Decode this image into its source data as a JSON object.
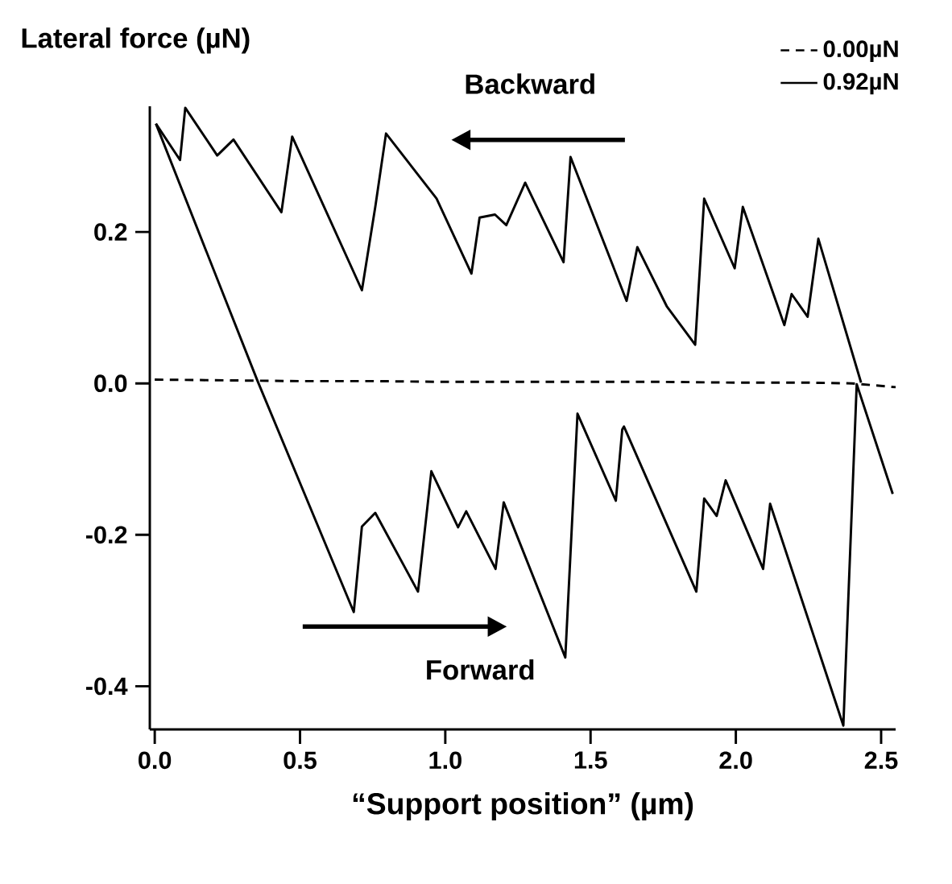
{
  "chart_data": {
    "type": "line",
    "ylabel": "Lateral force (µN)",
    "xlabel": "“Support position” (µm)",
    "annotations": [
      "Backward",
      "Forward"
    ],
    "xlim": [
      -0.017,
      2.55
    ],
    "ylim": [
      -0.457,
      0.366
    ],
    "xticks": [
      {
        "value": 0,
        "label": "0.0"
      },
      {
        "value": 0.5,
        "label": "0.5"
      },
      {
        "value": 1,
        "label": "1.0"
      },
      {
        "value": 1.5,
        "label": "1.5"
      },
      {
        "value": 2,
        "label": "2.0"
      },
      {
        "value": 2.5,
        "label": "2.5"
      }
    ],
    "yticks": [
      {
        "value": -0.4,
        "label": "-0.4"
      },
      {
        "value": -0.2,
        "label": "-0.2"
      },
      {
        "value": 0,
        "label": "0.0"
      },
      {
        "value": 0.2,
        "label": "0.2"
      }
    ],
    "legend": "top right",
    "series": [
      {
        "name": "0.00µN",
        "color": "#000000",
        "line_style": "dashed",
        "x": [
          0.0,
          0.25,
          0.5,
          0.75,
          1.0,
          1.25,
          1.5,
          1.75,
          2.0,
          2.25,
          2.4,
          2.55
        ],
        "values": [
          0.005,
          0.004,
          0.003,
          0.003,
          0.002,
          0.002,
          0.002,
          0.002,
          0.001,
          0.001,
          0.0,
          -0.005
        ]
      },
      {
        "name": "0.92µN",
        "color": "#000000",
        "line_style": "solid",
        "x": [
          0.004,
          0.354,
          0.685,
          0.713,
          0.759,
          0.906,
          0.952,
          1.044,
          1.072,
          1.173,
          1.201,
          1.413,
          1.455,
          1.587,
          1.609,
          1.615,
          1.864,
          1.891,
          1.934,
          1.965,
          2.094,
          2.118,
          2.37,
          2.416,
          2.54
        ],
        "values": [
          0.343,
          0.003,
          -0.302,
          -0.189,
          -0.171,
          -0.275,
          -0.116,
          -0.19,
          -0.169,
          -0.245,
          -0.157,
          -0.362,
          -0.04,
          -0.155,
          -0.061,
          -0.057,
          -0.275,
          -0.152,
          -0.175,
          -0.128,
          -0.245,
          -0.159,
          -0.452,
          -0.001,
          -0.146
        ]
      },
      {
        "color": "#000000",
        "line_style": "solid",
        "x": [
          0.004,
          0.087,
          0.105,
          0.215,
          0.271,
          0.436,
          0.473,
          0.713,
          0.759,
          0.796,
          0.97,
          1.09,
          1.118,
          1.171,
          1.21,
          1.275,
          1.407,
          1.431,
          1.624,
          1.661,
          1.762,
          1.86,
          1.891,
          1.996,
          2.024,
          2.167,
          2.192,
          2.247,
          2.284,
          2.431
        ],
        "values": [
          0.343,
          0.295,
          0.364,
          0.301,
          0.322,
          0.226,
          0.326,
          0.123,
          0.233,
          0.33,
          0.244,
          0.145,
          0.219,
          0.223,
          0.209,
          0.265,
          0.16,
          0.299,
          0.109,
          0.18,
          0.102,
          0.051,
          0.244,
          0.152,
          0.233,
          0.077,
          0.118,
          0.088,
          0.191,
          0.001
        ]
      }
    ]
  }
}
